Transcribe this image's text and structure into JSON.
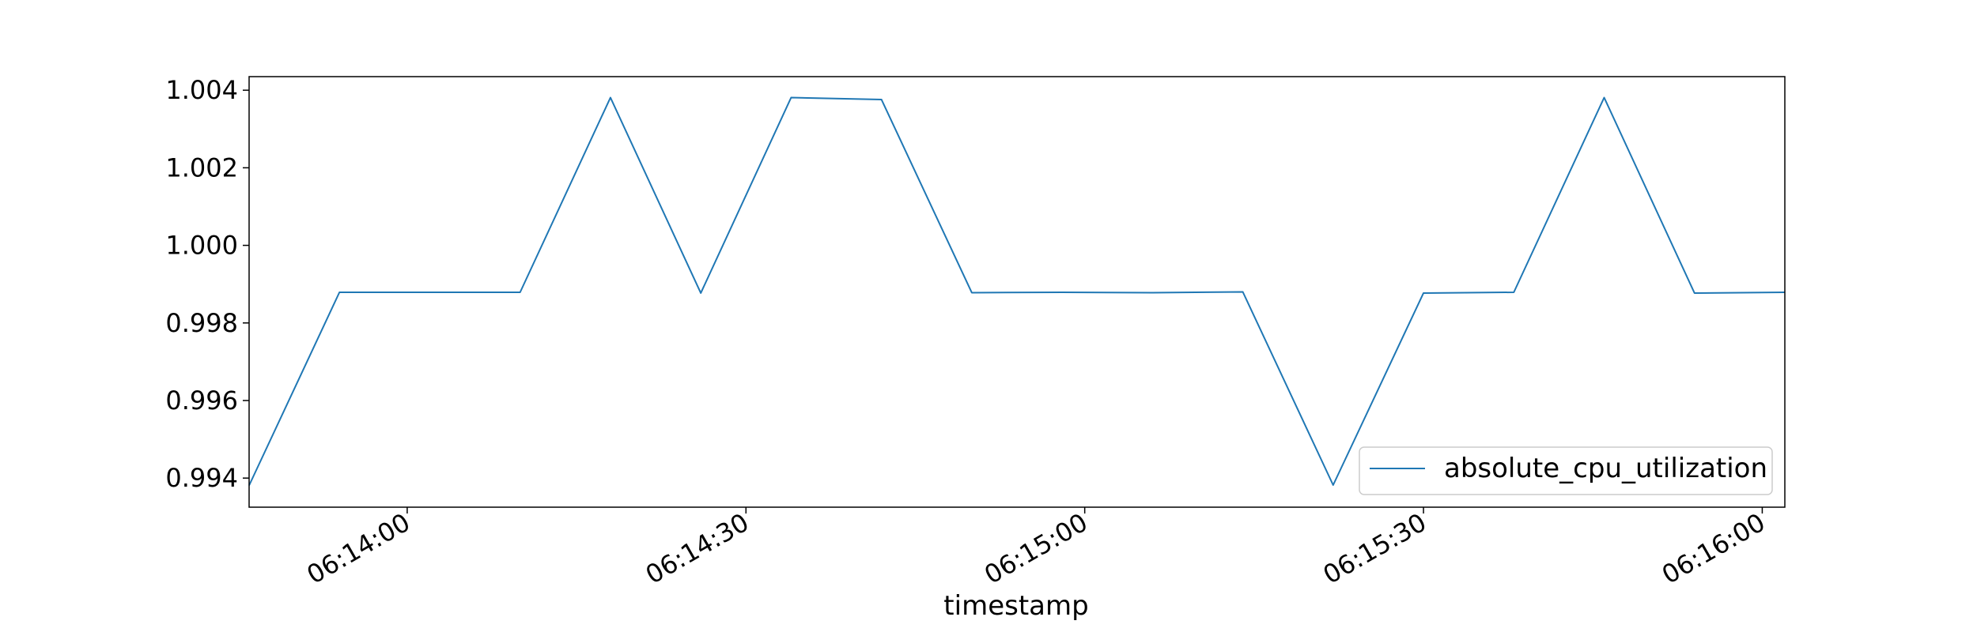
{
  "chart_data": {
    "type": "line",
    "title": "",
    "xlabel": "timestamp",
    "ylabel": "",
    "x_type": "time",
    "xlim": [
      "06:13:46",
      "06:16:02"
    ],
    "ylim": [
      0.99325,
      1.00435
    ],
    "x_ticks": [
      "06:14:00",
      "06:14:30",
      "06:15:00",
      "06:15:30",
      "06:16:00"
    ],
    "y_ticks": [
      0.994,
      0.996,
      0.998,
      1.0,
      1.002,
      1.004
    ],
    "y_tick_labels": [
      "0.994",
      "0.996",
      "0.998",
      "1.000",
      "1.002",
      "1.004"
    ],
    "grid": false,
    "legend_position": "lower right",
    "colors": {
      "series": "#1f77b4",
      "axes": "#000000",
      "legend_border": "#cccccc"
    },
    "series": [
      {
        "name": "absolute_cpu_utilization",
        "x": [
          "06:13:46",
          "06:13:54",
          "06:14:02",
          "06:14:10",
          "06:14:18",
          "06:14:26",
          "06:14:34",
          "06:14:42",
          "06:14:50",
          "06:14:58",
          "06:15:06",
          "06:15:14",
          "06:15:22",
          "06:15:30",
          "06:15:38",
          "06:15:46",
          "06:15:54",
          "06:16:02"
        ],
        "values": [
          0.99381,
          0.99879,
          0.99879,
          0.99879,
          1.00381,
          0.99877,
          1.00381,
          1.00376,
          0.99878,
          0.99879,
          0.99878,
          0.9988,
          0.99382,
          0.99877,
          0.99879,
          1.00381,
          0.99877,
          0.99879
        ]
      }
    ]
  }
}
